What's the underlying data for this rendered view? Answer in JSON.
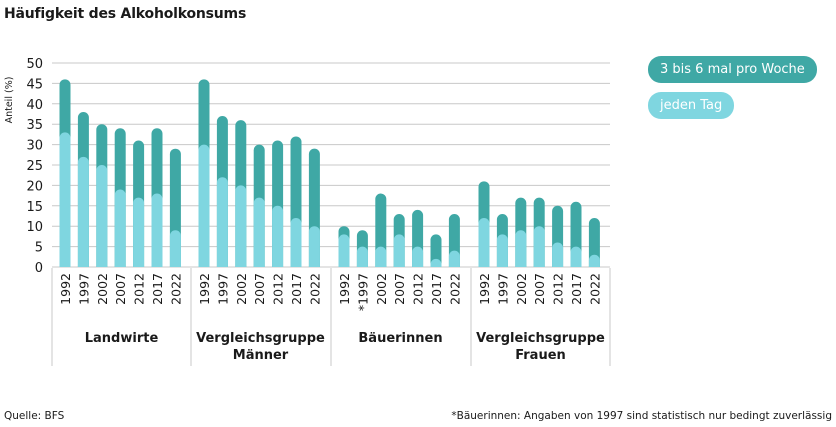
{
  "title": "Häufigkeit des Alkoholkonsums",
  "source": "Quelle: BFS",
  "footnote": "*Bäuerinnen: Angaben von 1997 sind statistisch nur bedingt zuverlässig",
  "colors": {
    "weekly": "#3fa8a5",
    "daily": "#7fd6e0",
    "grid": "#c8c8c8"
  },
  "chart_data": {
    "type": "bar",
    "stacked": true,
    "title": "Häufigkeit des Alkoholkonsums",
    "ylabel": "Anteil (%)",
    "xlabel": "",
    "ylim": [
      0,
      50
    ],
    "yticks": [
      0,
      5,
      10,
      15,
      20,
      25,
      30,
      35,
      40,
      45,
      50
    ],
    "grid": true,
    "legend_position": "right",
    "series": [
      {
        "name": "3 bis 6 mal pro Woche",
        "color": "#3fa8a5"
      },
      {
        "name": "jeden Tag",
        "color": "#7fd6e0"
      }
    ],
    "groups": [
      {
        "label": "Landwirte",
        "categories": [
          "1992",
          "1997",
          "2002",
          "2007",
          "2012",
          "2017",
          "2022"
        ],
        "daily": [
          33,
          27,
          25,
          19,
          17,
          18,
          9
        ],
        "weekly": [
          13,
          11,
          10,
          15,
          14,
          16,
          20
        ]
      },
      {
        "label": "Vergleichsgruppe Männer",
        "categories": [
          "1992",
          "1997",
          "2002",
          "2007",
          "2012",
          "2017",
          "2022"
        ],
        "daily": [
          30,
          22,
          20,
          17,
          15,
          12,
          10
        ],
        "weekly": [
          16,
          15,
          16,
          13,
          16,
          20,
          19
        ]
      },
      {
        "label": "Bäuerinnen",
        "categories": [
          "1992",
          "*1997",
          "2002",
          "2007",
          "2012",
          "2017",
          "2022"
        ],
        "daily": [
          8,
          5,
          5,
          8,
          5,
          2,
          4
        ],
        "weekly": [
          2,
          4,
          13,
          5,
          9,
          6,
          9
        ]
      },
      {
        "label": "Vergleichsgruppe Frauen",
        "categories": [
          "1992",
          "1997",
          "2002",
          "2007",
          "2012",
          "2017",
          "2022"
        ],
        "daily": [
          12,
          8,
          9,
          10,
          6,
          5,
          3
        ],
        "weekly": [
          9,
          5,
          8,
          7,
          9,
          11,
          9
        ]
      }
    ]
  }
}
